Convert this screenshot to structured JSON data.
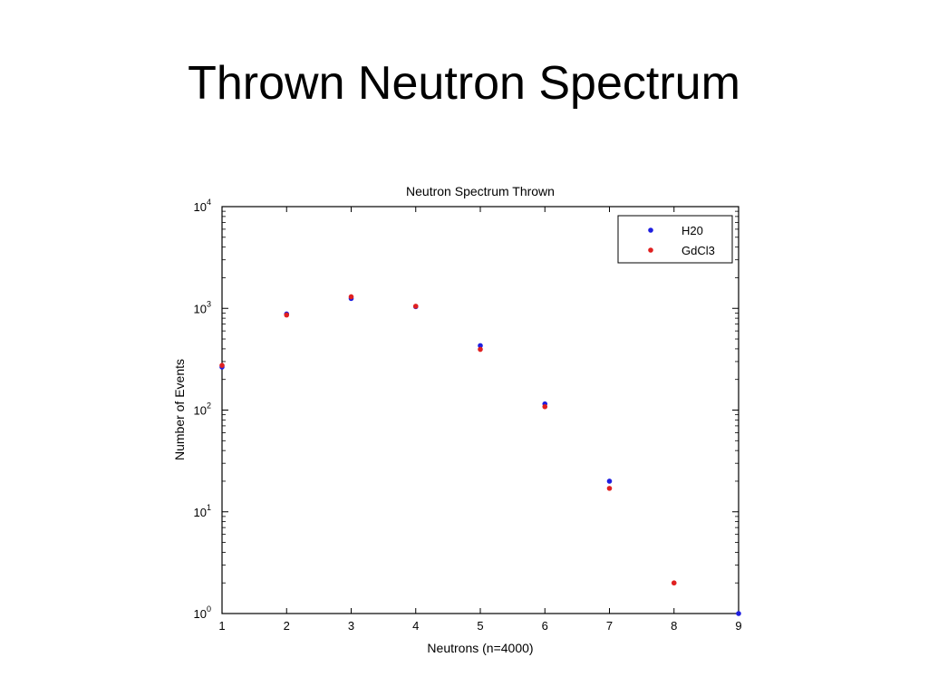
{
  "slide": {
    "title": "Thrown Neutron Spectrum"
  },
  "chart_data": {
    "type": "scatter",
    "title": "Neutron Spectrum Thrown",
    "xlabel": "Neutrons (n=4000)",
    "ylabel": "Number of Events",
    "xlim": [
      1,
      9
    ],
    "ylim": [
      1,
      10000
    ],
    "yscale": "log",
    "xticks": [
      1,
      2,
      3,
      4,
      5,
      6,
      7,
      8,
      9
    ],
    "yticks": [
      1,
      10,
      100,
      1000,
      10000
    ],
    "ytick_labels": [
      {
        "base": "10",
        "exp": "0"
      },
      {
        "base": "10",
        "exp": "1"
      },
      {
        "base": "10",
        "exp": "2"
      },
      {
        "base": "10",
        "exp": "3"
      },
      {
        "base": "10",
        "exp": "4"
      }
    ],
    "grid": false,
    "legend_position": "top-right",
    "series": [
      {
        "name": "H20",
        "color": "#1f1fe0",
        "points": [
          [
            1,
            265
          ],
          [
            2,
            880
          ],
          [
            3,
            1250
          ],
          [
            4,
            1040
          ],
          [
            5,
            430
          ],
          [
            6,
            115
          ],
          [
            7,
            20
          ],
          [
            9,
            1
          ]
        ]
      },
      {
        "name": "GdCl3",
        "color": "#e02020",
        "points": [
          [
            1,
            275
          ],
          [
            2,
            860
          ],
          [
            3,
            1300
          ],
          [
            4,
            1050
          ],
          [
            5,
            395
          ],
          [
            6,
            108
          ],
          [
            7,
            17
          ],
          [
            8,
            2
          ]
        ]
      }
    ]
  }
}
